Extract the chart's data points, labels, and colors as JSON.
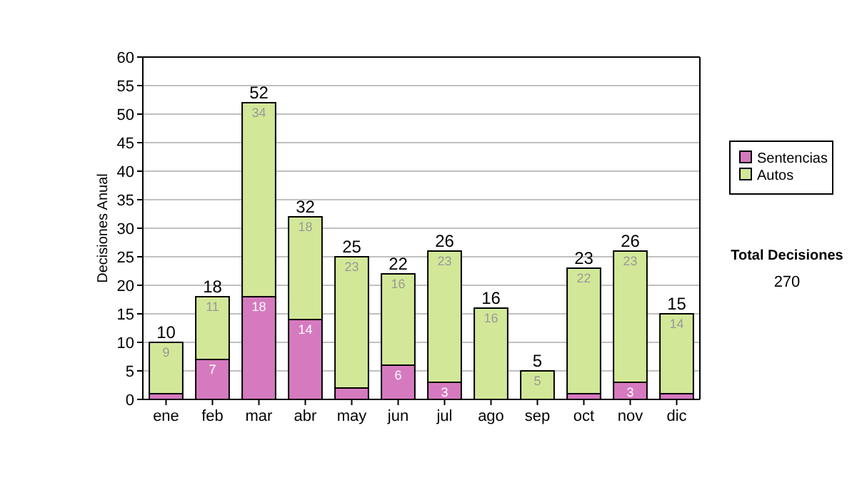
{
  "chart_data": {
    "type": "bar",
    "stacked": true,
    "ylabel": "Decisiones Anual",
    "categories": [
      "ene",
      "feb",
      "mar",
      "abr",
      "may",
      "jun",
      "jul",
      "ago",
      "sep",
      "oct",
      "nov",
      "dic"
    ],
    "series": [
      {
        "name": "Sentencias",
        "color": "#d67abf",
        "values": [
          1,
          7,
          18,
          14,
          2,
          6,
          3,
          0,
          0,
          1,
          3,
          1
        ],
        "value_labels": [
          null,
          "7",
          "18",
          "14",
          null,
          "6",
          "3",
          null,
          null,
          null,
          "3",
          null
        ]
      },
      {
        "name": "Autos",
        "color": "#d2e898",
        "values": [
          9,
          11,
          34,
          18,
          23,
          16,
          23,
          16,
          5,
          22,
          23,
          14
        ],
        "value_labels": [
          "9",
          "11",
          "34",
          "18",
          "23",
          "16",
          "23",
          "16",
          "5",
          "22",
          "23",
          "14"
        ]
      }
    ],
    "totals": [
      "10",
      "18",
      "52",
      "32",
      "25",
      "22",
      "26",
      "16",
      "5",
      "23",
      "26",
      "15"
    ],
    "ylim": [
      0,
      60
    ],
    "yticks": [
      0,
      5,
      10,
      15,
      20,
      25,
      30,
      35,
      40,
      45,
      50,
      55,
      60
    ],
    "grid": "y",
    "legend": "right",
    "annotations": [
      "Total Decisiones",
      "270"
    ]
  }
}
